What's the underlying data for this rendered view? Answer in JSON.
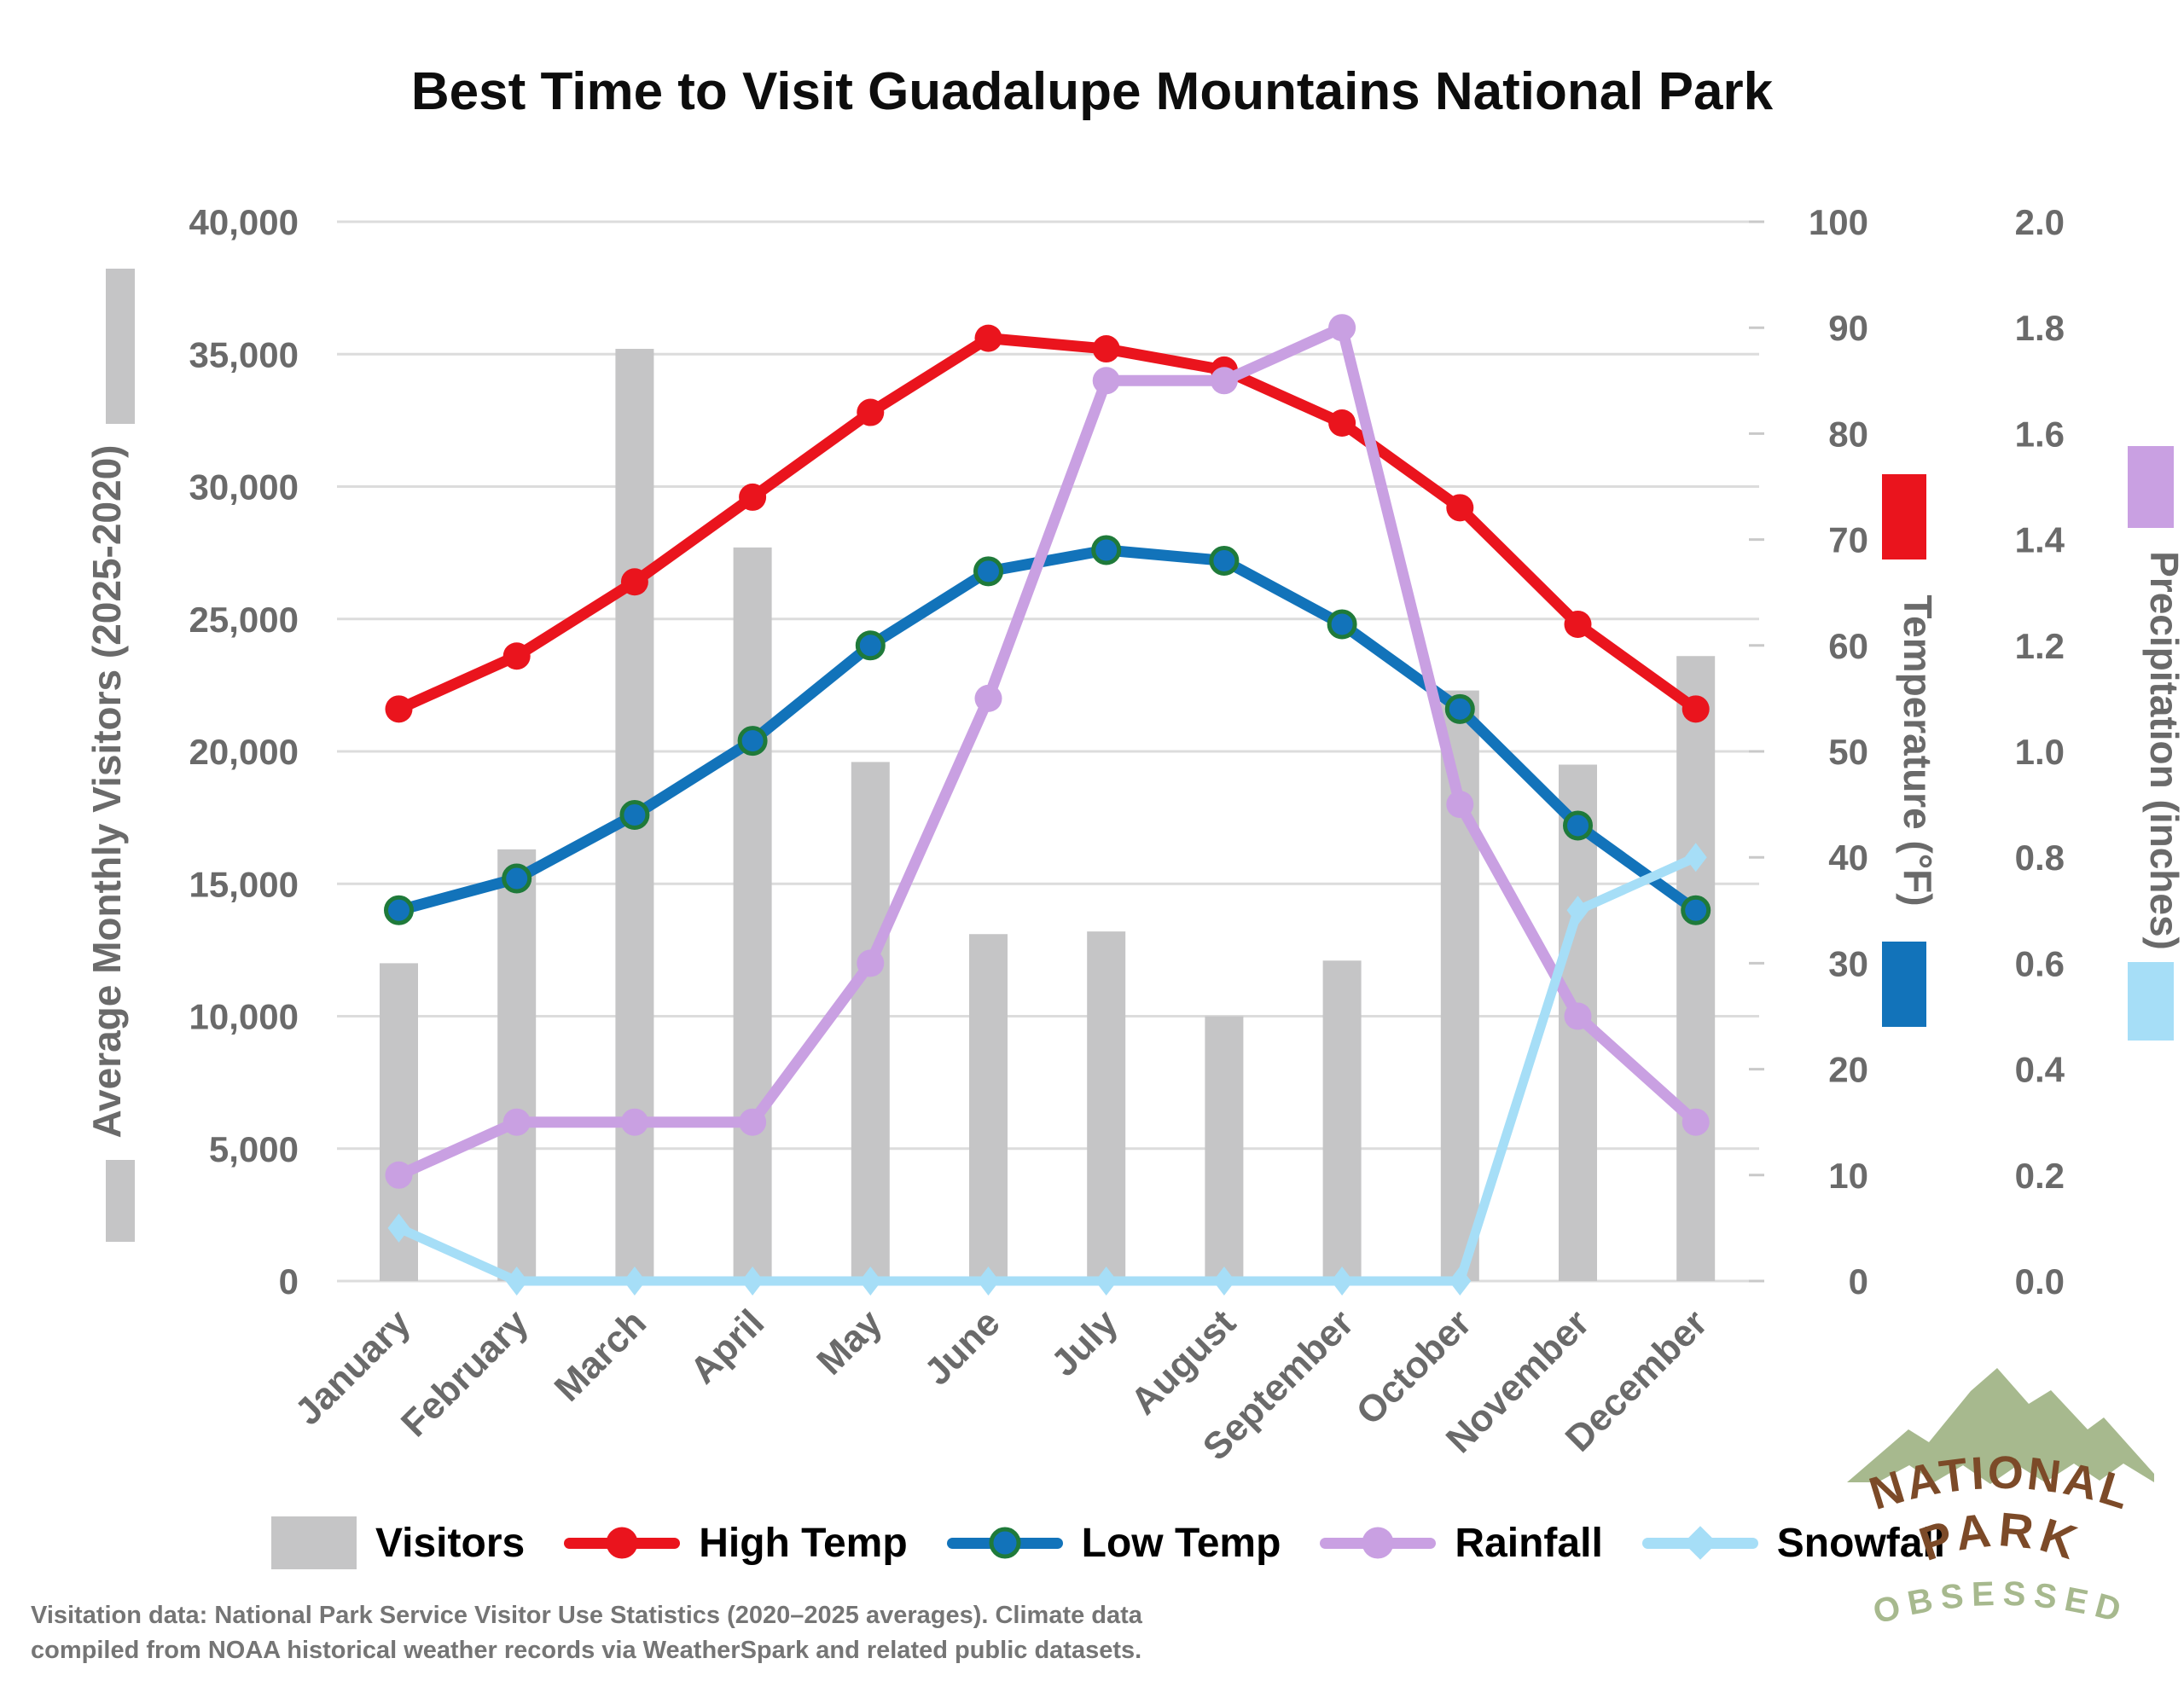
{
  "title": "Best Time to Visit Guadalupe Mountains National Park",
  "chart_data": {
    "type": "combo",
    "grid": "horizontal",
    "legend_position": "bottom",
    "categories": [
      "January",
      "February",
      "March",
      "April",
      "May",
      "June",
      "July",
      "August",
      "September",
      "October",
      "November",
      "December"
    ],
    "series": [
      {
        "name": "Visitors",
        "type": "bar",
        "axis": "visitors",
        "color": "#c5c5c6",
        "values": [
          12000,
          16300,
          35200,
          27700,
          19600,
          13100,
          13200,
          10000,
          12100,
          22300,
          19500,
          23600
        ]
      },
      {
        "name": "High Temp",
        "type": "line",
        "axis": "temperature",
        "color": "#ea141d",
        "marker": "circle",
        "values": [
          54,
          59,
          66,
          74,
          82,
          89,
          88,
          86,
          81,
          73,
          62,
          54
        ]
      },
      {
        "name": "Low Temp",
        "type": "line",
        "axis": "temperature",
        "color": "#1273ba",
        "marker": "circle",
        "marker_border": "#1f7a3a",
        "values": [
          35,
          38,
          44,
          51,
          60,
          67,
          69,
          68,
          62,
          54,
          43,
          35
        ]
      },
      {
        "name": "Rainfall",
        "type": "line",
        "axis": "precipitation",
        "color": "#c9a0e2",
        "marker": "circle",
        "values": [
          0.2,
          0.3,
          0.3,
          0.3,
          0.6,
          1.1,
          1.7,
          1.7,
          1.8,
          0.9,
          0.5,
          0.3
        ]
      },
      {
        "name": "Snowfall",
        "type": "line",
        "axis": "precipitation",
        "color": "#a6def7",
        "marker": "diamond",
        "values": [
          0.1,
          0,
          0,
          0,
          0,
          0,
          0,
          0,
          0,
          0,
          0.7,
          0.8
        ]
      }
    ],
    "axes": {
      "visitors": {
        "title": "Average Monthly Visitors (2025-2020)",
        "min": 0,
        "max": 40000,
        "tick_step": 5000,
        "position": "left"
      },
      "temperature": {
        "title": "Temperature (°F)",
        "min": 0,
        "max": 100,
        "tick_step": 10,
        "position": "right"
      },
      "precipitation": {
        "title": "Precipitation (inches)",
        "min": 0,
        "max": 2.0,
        "tick_step": 0.2,
        "position": "right-outer"
      }
    },
    "colors": {
      "gridline": "#dcdcdc",
      "tick_text": "#6a6a6a",
      "axis_title_text": "#6a6a6a"
    }
  },
  "legend": [
    {
      "label": "Visitors"
    },
    {
      "label": "High Temp"
    },
    {
      "label": "Low Temp"
    },
    {
      "label": "Rainfall"
    },
    {
      "label": "Snowfall"
    }
  ],
  "attribution": {
    "line1": "Visitation data: National Park Service Visitor Use Statistics (2020–2025 averages). Climate data",
    "line2": "compiled from NOAA historical weather records via WeatherSpark and related public datasets."
  },
  "logo": {
    "word1": "NATIONAL",
    "word2": "PARK",
    "word3": "OBSESSED",
    "mountain_color": "#a7b98e",
    "brown": "#7c4a28",
    "green": "#a7b98e"
  }
}
